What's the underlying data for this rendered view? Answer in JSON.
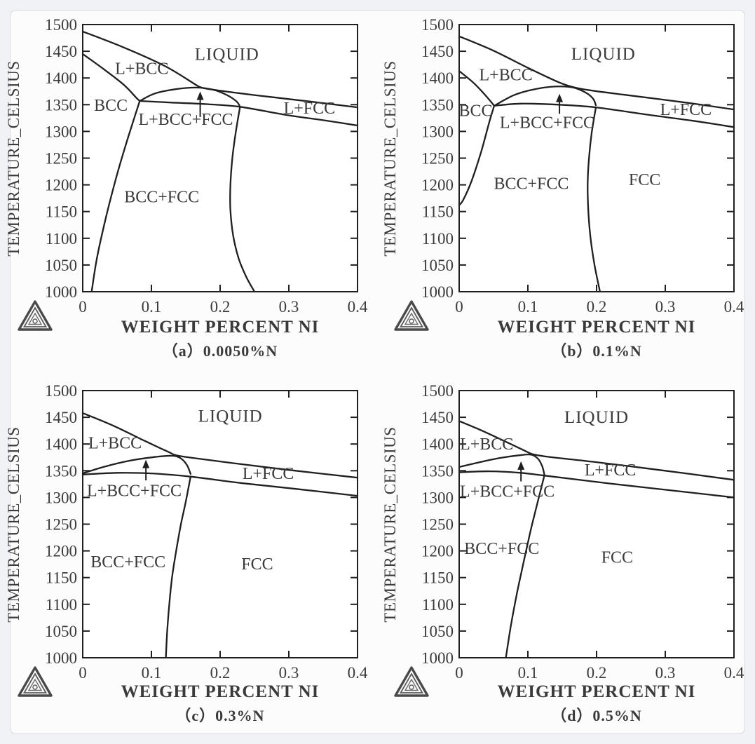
{
  "figure": {
    "background": "#f0f2f5",
    "card_background": "#fcfcfd",
    "card_border": "#d6d9dd",
    "line_color": "#1f1f1f",
    "text_color": "#3a3a3a",
    "logo_name": "thermo-calc-triangle-logo"
  },
  "chart_data": [
    {
      "type": "line",
      "panel": "a",
      "caption": "（a）0.0050%N",
      "xlabel": "WEIGHT PERCENT NI",
      "ylabel": "TEMPERATURE_CELSIUS",
      "xlim": [
        0,
        0.4
      ],
      "ylim": [
        1000,
        1500
      ],
      "xticks": [
        0,
        0.1,
        0.2,
        0.3,
        0.4
      ],
      "yticks": [
        1000,
        1050,
        1100,
        1150,
        1200,
        1250,
        1300,
        1350,
        1400,
        1450,
        1500
      ],
      "grid": false,
      "series": [
        {
          "name": "liquidus-and-lfcc-top",
          "points": [
            [
              0,
              1487
            ],
            [
              0.06,
              1457
            ],
            [
              0.12,
              1422
            ],
            [
              0.165,
              1387
            ],
            [
              0.171,
              1383
            ],
            [
              0.185,
              1379
            ],
            [
              0.25,
              1368
            ],
            [
              0.33,
              1356
            ],
            [
              0.4,
              1345
            ]
          ]
        },
        {
          "name": "bcc-solidus",
          "points": [
            [
              0,
              1445
            ],
            [
              0.03,
              1417
            ],
            [
              0.06,
              1387
            ],
            [
              0.078,
              1363
            ],
            [
              0.083,
              1357
            ]
          ]
        },
        {
          "name": "three-phase-upper",
          "points": [
            [
              0.083,
              1357
            ],
            [
              0.105,
              1371
            ],
            [
              0.135,
              1379
            ],
            [
              0.165,
              1382
            ],
            [
              0.19,
              1378
            ],
            [
              0.21,
              1368
            ],
            [
              0.224,
              1356
            ],
            [
              0.229,
              1346
            ]
          ]
        },
        {
          "name": "fcc-solidus-and-lfcc-bottom",
          "points": [
            [
              0.083,
              1357
            ],
            [
              0.13,
              1354
            ],
            [
              0.18,
              1351
            ],
            [
              0.229,
              1346
            ],
            [
              0.3,
              1330
            ],
            [
              0.35,
              1321
            ],
            [
              0.4,
              1311
            ]
          ]
        },
        {
          "name": "bcc-phase-boundary",
          "points": [
            [
              0.083,
              1357
            ],
            [
              0.075,
              1325
            ],
            [
              0.062,
              1272
            ],
            [
              0.048,
              1210
            ],
            [
              0.034,
              1140
            ],
            [
              0.021,
              1065
            ],
            [
              0.013,
              1000
            ]
          ]
        },
        {
          "name": "fcc-phase-boundary",
          "points": [
            [
              0.229,
              1346
            ],
            [
              0.223,
              1300
            ],
            [
              0.218,
              1252
            ],
            [
              0.215,
              1200
            ],
            [
              0.215,
              1152
            ],
            [
              0.219,
              1105
            ],
            [
              0.227,
              1062
            ],
            [
              0.238,
              1028
            ],
            [
              0.25,
              1000
            ]
          ]
        }
      ],
      "region_labels": [
        {
          "text": "LIQUID",
          "x": 0.21,
          "y": 1444,
          "big": true
        },
        {
          "text": "L+BCC",
          "x": 0.086,
          "y": 1418
        },
        {
          "text": "BCC",
          "x": 0.041,
          "y": 1349
        },
        {
          "text": "L+BCC+FCC",
          "x": 0.15,
          "y": 1323
        },
        {
          "text": "L+FCC",
          "x": 0.33,
          "y": 1344
        },
        {
          "text": "BCC+FCC",
          "x": 0.115,
          "y": 1178
        }
      ],
      "arrow": {
        "x": 0.171,
        "y_from": 1327,
        "y_to": 1372
      }
    },
    {
      "type": "line",
      "panel": "b",
      "caption": "（b）0.1%N",
      "xlabel": "WEIGHT PERCENT NI",
      "ylabel": "TEMPERATURE_CELSIUS",
      "xlim": [
        0,
        0.4
      ],
      "ylim": [
        1000,
        1500
      ],
      "xticks": [
        0,
        0.1,
        0.2,
        0.3,
        0.4
      ],
      "yticks": [
        1000,
        1050,
        1100,
        1150,
        1200,
        1250,
        1300,
        1350,
        1400,
        1450,
        1500
      ],
      "grid": false,
      "series": [
        {
          "name": "liquidus-and-lfcc-top",
          "points": [
            [
              0,
              1478
            ],
            [
              0.05,
              1451
            ],
            [
              0.1,
              1419
            ],
            [
              0.145,
              1392
            ],
            [
              0.166,
              1383
            ],
            [
              0.19,
              1377
            ],
            [
              0.25,
              1367
            ],
            [
              0.33,
              1354
            ],
            [
              0.4,
              1341
            ]
          ]
        },
        {
          "name": "bcc-solidus",
          "points": [
            [
              0,
              1413
            ],
            [
              0.02,
              1392
            ],
            [
              0.038,
              1368
            ],
            [
              0.051,
              1348
            ]
          ]
        },
        {
          "name": "three-phase-upper",
          "points": [
            [
              0.051,
              1348
            ],
            [
              0.08,
              1368
            ],
            [
              0.11,
              1379
            ],
            [
              0.14,
              1384
            ],
            [
              0.166,
              1382
            ],
            [
              0.185,
              1372
            ],
            [
              0.195,
              1361
            ],
            [
              0.199,
              1349
            ]
          ]
        },
        {
          "name": "fcc-solidus-and-lfcc-bottom",
          "points": [
            [
              0.051,
              1348
            ],
            [
              0.09,
              1352
            ],
            [
              0.145,
              1350
            ],
            [
              0.199,
              1345
            ],
            [
              0.27,
              1332
            ],
            [
              0.34,
              1320
            ],
            [
              0.4,
              1308
            ]
          ]
        },
        {
          "name": "bcc-phase-boundary",
          "points": [
            [
              0.051,
              1348
            ],
            [
              0.044,
              1318
            ],
            [
              0.032,
              1262
            ],
            [
              0.018,
              1207
            ],
            [
              0.006,
              1172
            ],
            [
              0,
              1162
            ]
          ]
        },
        {
          "name": "fcc-phase-boundary",
          "points": [
            [
              0.199,
              1345
            ],
            [
              0.193,
              1298
            ],
            [
              0.189,
              1250
            ],
            [
              0.187,
              1200
            ],
            [
              0.188,
              1152
            ],
            [
              0.191,
              1103
            ],
            [
              0.197,
              1050
            ],
            [
              0.205,
              1000
            ]
          ]
        }
      ],
      "region_labels": [
        {
          "text": "LIQUID",
          "x": 0.21,
          "y": 1445,
          "big": true
        },
        {
          "text": "L+BCC",
          "x": 0.068,
          "y": 1406
        },
        {
          "text": "BCC",
          "x": 0.024,
          "y": 1339
        },
        {
          "text": "L+BCC+FCC",
          "x": 0.128,
          "y": 1317
        },
        {
          "text": "L+FCC",
          "x": 0.33,
          "y": 1341
        },
        {
          "text": "BCC+FCC",
          "x": 0.105,
          "y": 1203
        },
        {
          "text": "FCC",
          "x": 0.27,
          "y": 1210
        }
      ],
      "arrow": {
        "x": 0.146,
        "y_from": 1333,
        "y_to": 1368
      }
    },
    {
      "type": "line",
      "panel": "c",
      "caption": "（c）0.3%N",
      "xlabel": "WEIGHT PERCENT NI",
      "ylabel": "TEMPERATURE_CELSIUS",
      "xlim": [
        0,
        0.4
      ],
      "ylim": [
        1000,
        1500
      ],
      "xticks": [
        0,
        0.1,
        0.2,
        0.3,
        0.4
      ],
      "yticks": [
        1000,
        1050,
        1100,
        1150,
        1200,
        1250,
        1300,
        1350,
        1400,
        1450,
        1500
      ],
      "grid": false,
      "series": [
        {
          "name": "liquidus-and-lfcc-top",
          "points": [
            [
              0,
              1458
            ],
            [
              0.045,
              1434
            ],
            [
              0.09,
              1406
            ],
            [
              0.125,
              1385
            ],
            [
              0.136,
              1379
            ],
            [
              0.16,
              1374
            ],
            [
              0.22,
              1364
            ],
            [
              0.31,
              1350
            ],
            [
              0.4,
              1337
            ]
          ]
        },
        {
          "name": "three-phase-upper",
          "points": [
            [
              0,
              1345
            ],
            [
              0.03,
              1357
            ],
            [
              0.065,
              1368
            ],
            [
              0.1,
              1375
            ],
            [
              0.13,
              1378
            ],
            [
              0.143,
              1373
            ],
            [
              0.152,
              1360
            ],
            [
              0.157,
              1344
            ]
          ]
        },
        {
          "name": "fcc-solidus-and-lfcc-bottom",
          "points": [
            [
              0,
              1343
            ],
            [
              0.05,
              1346
            ],
            [
              0.1,
              1345
            ],
            [
              0.157,
              1339
            ],
            [
              0.23,
              1327
            ],
            [
              0.31,
              1316
            ],
            [
              0.4,
              1303
            ]
          ]
        },
        {
          "name": "fcc-phase-boundary",
          "points": [
            [
              0.157,
              1339
            ],
            [
              0.15,
              1292
            ],
            [
              0.143,
              1250
            ],
            [
              0.136,
              1200
            ],
            [
              0.13,
              1150
            ],
            [
              0.126,
              1100
            ],
            [
              0.123,
              1050
            ],
            [
              0.121,
              1000
            ]
          ]
        }
      ],
      "region_labels": [
        {
          "text": "LIQUID",
          "x": 0.215,
          "y": 1452,
          "big": true
        },
        {
          "text": "L+BCC",
          "x": 0.047,
          "y": 1402
        },
        {
          "text": "L+BCC+FCC",
          "x": 0.075,
          "y": 1313
        },
        {
          "text": "L+FCC",
          "x": 0.27,
          "y": 1345
        },
        {
          "text": "BCC+FCC",
          "x": 0.066,
          "y": 1180
        },
        {
          "text": "FCC",
          "x": 0.254,
          "y": 1176
        }
      ],
      "arrow": {
        "x": 0.092,
        "y_from": 1332,
        "y_to": 1368
      }
    },
    {
      "type": "line",
      "panel": "d",
      "caption": "（d）0.5%N",
      "xlabel": "WEIGHT PERCENT NI",
      "ylabel": "TEMPERATURE_CELSIUS",
      "xlim": [
        0,
        0.4
      ],
      "ylim": [
        1000,
        1500
      ],
      "xticks": [
        0,
        0.1,
        0.2,
        0.3,
        0.4
      ],
      "yticks": [
        1000,
        1050,
        1100,
        1150,
        1200,
        1250,
        1300,
        1350,
        1400,
        1450,
        1500
      ],
      "grid": false,
      "series": [
        {
          "name": "liquidus-and-lfcc-top",
          "points": [
            [
              0,
              1443
            ],
            [
              0.035,
              1424
            ],
            [
              0.07,
              1403
            ],
            [
              0.098,
              1386
            ],
            [
              0.107,
              1381
            ],
            [
              0.13,
              1376
            ],
            [
              0.2,
              1366
            ],
            [
              0.3,
              1350
            ],
            [
              0.4,
              1333
            ]
          ]
        },
        {
          "name": "three-phase-upper",
          "points": [
            [
              0,
              1357
            ],
            [
              0.03,
              1366
            ],
            [
              0.06,
              1374
            ],
            [
              0.088,
              1379
            ],
            [
              0.105,
              1380
            ],
            [
              0.115,
              1372
            ],
            [
              0.121,
              1358
            ],
            [
              0.124,
              1343
            ]
          ]
        },
        {
          "name": "fcc-solidus-and-lfcc-bottom",
          "points": [
            [
              0,
              1347
            ],
            [
              0.045,
              1349
            ],
            [
              0.09,
              1346
            ],
            [
              0.124,
              1341
            ],
            [
              0.22,
              1326
            ],
            [
              0.31,
              1313
            ],
            [
              0.4,
              1300
            ]
          ]
        },
        {
          "name": "fcc-phase-boundary",
          "points": [
            [
              0.124,
              1341
            ],
            [
              0.114,
              1290
            ],
            [
              0.104,
              1238
            ],
            [
              0.094,
              1180
            ],
            [
              0.084,
              1120
            ],
            [
              0.075,
              1058
            ],
            [
              0.068,
              1000
            ]
          ]
        }
      ],
      "region_labels": [
        {
          "text": "LIQUID",
          "x": 0.2,
          "y": 1450,
          "big": true
        },
        {
          "text": "L+BCC",
          "x": 0.04,
          "y": 1400
        },
        {
          "text": "L+BCC+FCC",
          "x": 0.07,
          "y": 1312
        },
        {
          "text": "L+FCC",
          "x": 0.22,
          "y": 1352
        },
        {
          "text": "BCC+FCC",
          "x": 0.062,
          "y": 1205
        },
        {
          "text": "FCC",
          "x": 0.23,
          "y": 1188
        }
      ],
      "arrow": {
        "x": 0.09,
        "y_from": 1330,
        "y_to": 1365
      }
    }
  ]
}
